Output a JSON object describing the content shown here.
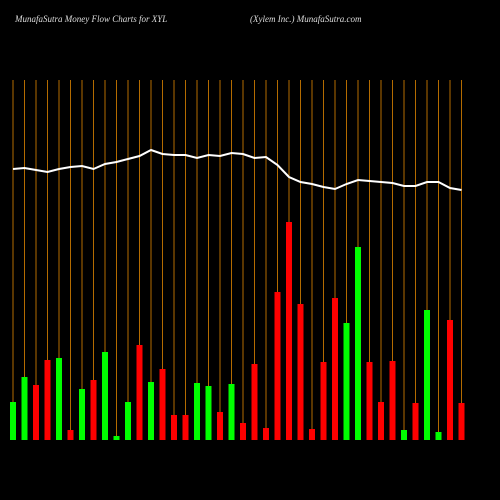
{
  "chart_data": {
    "type": "bar",
    "title": "MunafaSutra  Money Flow  Charts for XYL",
    "subtitle": "(Xylem Inc.) MunafaSutra.com",
    "categories": [
      null,
      null,
      null,
      null,
      null,
      null,
      null,
      null,
      null,
      null,
      null,
      null,
      null,
      null,
      null,
      null,
      null,
      null,
      null,
      null,
      null,
      null,
      null,
      null,
      null,
      null,
      null,
      null,
      null,
      null,
      null,
      null,
      null,
      null,
      null,
      null,
      null,
      null,
      null,
      null
    ],
    "series": [
      {
        "values": [
          38,
          63,
          55,
          80,
          82,
          10,
          51,
          60,
          88,
          4,
          38,
          95,
          58,
          71,
          25,
          25,
          57,
          54,
          28,
          56,
          17,
          76,
          12,
          148,
          218,
          136,
          11,
          78,
          142,
          117,
          193,
          78,
          38,
          79,
          10,
          37,
          130,
          8,
          120,
          37
        ],
        "colors": [
          "#00ff00",
          "#00ff00",
          "#ff0000",
          "#ff0000",
          "#00ff00",
          "#ff0000",
          "#00ff00",
          "#ff0000",
          "#00ff00",
          "#00ff00",
          "#00ff00",
          "#ff0000",
          "#00ff00",
          "#ff0000",
          "#ff0000",
          "#ff0000",
          "#00ff00",
          "#00ff00",
          "#ff0000",
          "#00ff00",
          "#ff0000",
          "#ff0000",
          "#ff0000",
          "#ff0000",
          "#ff0000",
          "#ff0000",
          "#ff0000",
          "#ff0000",
          "#ff0000",
          "#00ff00",
          "#00ff00",
          "#ff0000",
          "#ff0000",
          "#ff0000",
          "#00ff00",
          "#ff0000",
          "#00ff00",
          "#00ff00",
          "#ff0000",
          "#ff0000"
        ]
      },
      {
        "type": "line",
        "color": "#ffffff",
        "values": [
          271,
          272,
          270,
          268,
          271,
          273,
          274,
          271,
          276,
          278,
          281,
          284,
          290,
          286,
          285,
          285,
          282,
          285,
          284,
          287,
          286,
          282,
          283,
          275,
          263,
          258,
          256,
          253,
          251,
          256,
          260,
          259,
          258,
          257,
          254,
          254,
          258,
          258,
          252,
          250
        ]
      }
    ],
    "ylim": [
      0,
      360
    ],
    "grid_color": "#b36b00"
  }
}
